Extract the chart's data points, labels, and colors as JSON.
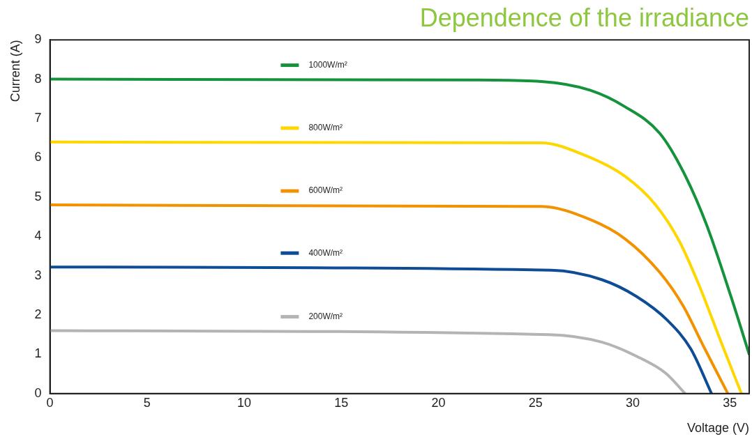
{
  "chart_data": {
    "type": "line",
    "title": "Dependence of the irradiance",
    "xlabel": "Voltage (V)",
    "ylabel": "Current (A)",
    "xlim": [
      0,
      36
    ],
    "xticks": [
      0,
      5,
      10,
      15,
      20,
      25,
      30,
      35
    ],
    "ylim": [
      0,
      9
    ],
    "yticks": [
      0,
      1,
      2,
      3,
      4,
      5,
      6,
      7,
      8,
      9
    ],
    "grid": false,
    "legend": "top",
    "marker": "none",
    "line_style": "solid",
    "series": [
      {
        "name": "1000W/m²",
        "color": "#14923c",
        "x": [
          0,
          21.7,
          25.3,
          27.8,
          29.6,
          31.4,
          32.6,
          33.8,
          35.06,
          36
        ],
        "values": [
          8,
          7.98,
          7.94,
          7.72,
          7.3,
          6.62,
          5.65,
          4.3,
          2.47,
          1.0
        ]
      },
      {
        "name": "800W/m²",
        "color": "#ffd700",
        "x": [
          0,
          25.3,
          27.5,
          29.6,
          31.2,
          32.4,
          33.4,
          34.6,
          35.6
        ],
        "values": [
          6.4,
          6.38,
          6.07,
          5.53,
          4.79,
          3.88,
          2.78,
          1.25,
          0
        ]
      },
      {
        "name": "600W/m²",
        "color": "#f39200",
        "x": [
          0,
          25.3,
          27.8,
          29.6,
          31.4,
          32.6,
          33.6,
          34.9
        ],
        "values": [
          4.8,
          4.76,
          4.43,
          3.94,
          3.08,
          2.23,
          1.25,
          0
        ]
      },
      {
        "name": "400W/m²",
        "color": "#0f4c96",
        "x": [
          0,
          25.8,
          28.4,
          30.2,
          31.8,
          33.0,
          34.06
        ],
        "values": [
          3.22,
          3.14,
          2.9,
          2.47,
          1.86,
          1.13,
          0
        ]
      },
      {
        "name": "200W/m²",
        "color": "#b4b4b4",
        "x": [
          0,
          25.7,
          28.4,
          30.2,
          31.7,
          32.7
        ],
        "values": [
          1.6,
          1.5,
          1.31,
          0.95,
          0.52,
          0
        ]
      }
    ]
  }
}
